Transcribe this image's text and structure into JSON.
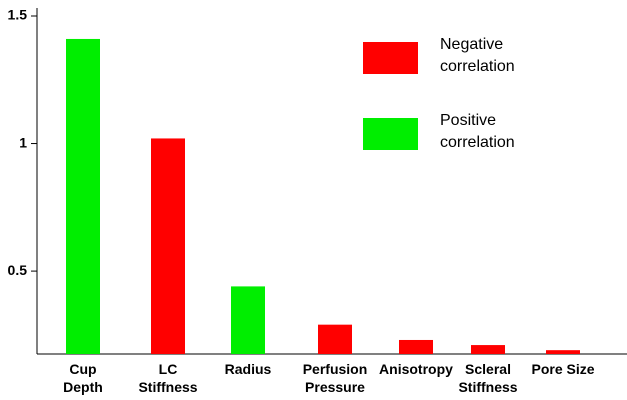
{
  "chart_data": {
    "type": "bar",
    "categories": [
      "Cup Depth",
      "LC Stiffness",
      "Radius",
      "Perfusion Pressure",
      "Anisotropy",
      "Scleral Stiffness",
      "Pore Size"
    ],
    "series": [
      {
        "name": "Negative correlation",
        "color": "#ff0000",
        "values": [
          null,
          1.02,
          null,
          0.29,
          0.23,
          0.21,
          0.19
        ]
      },
      {
        "name": "Positive correlation",
        "color": "#00ee00",
        "values": [
          1.41,
          null,
          0.44,
          null,
          null,
          null,
          null
        ]
      }
    ],
    "ylim": [
      0.175,
      1.5
    ],
    "yticks": [
      0.5,
      1,
      1.5
    ],
    "grid": false
  }
}
